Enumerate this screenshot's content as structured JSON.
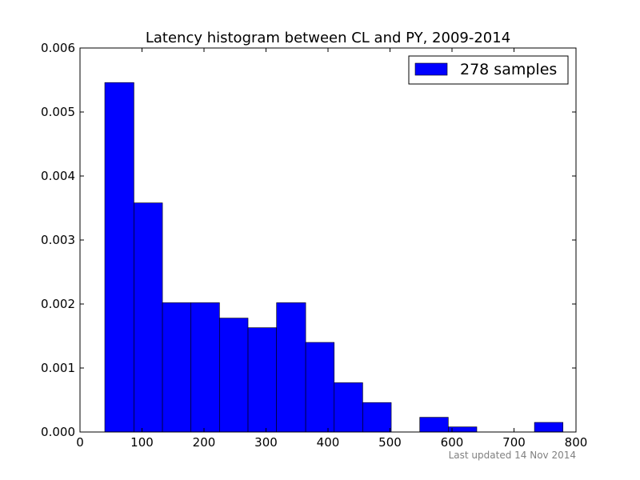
{
  "chart_data": {
    "type": "bar",
    "title": "Latency histogram between CL and PY, 2009-2014",
    "xlabel": "",
    "ylabel": "",
    "xlim": [
      0,
      800
    ],
    "ylim": [
      0,
      0.006
    ],
    "x_ticks": [
      "0",
      "100",
      "200",
      "300",
      "400",
      "500",
      "600",
      "700",
      "800"
    ],
    "y_ticks": [
      "0.000",
      "0.001",
      "0.002",
      "0.003",
      "0.004",
      "0.005",
      "0.006"
    ],
    "bar_color": "#0000ff",
    "grid": false,
    "legend_position": "top-right",
    "series": [
      {
        "name": "278 samples",
        "bins": [
          {
            "x0": 40,
            "x1": 87,
            "value": 0.00546
          },
          {
            "x0": 87,
            "x1": 133,
            "value": 0.00358
          },
          {
            "x0": 133,
            "x1": 179,
            "value": 0.00202
          },
          {
            "x0": 179,
            "x1": 225,
            "value": 0.00202
          },
          {
            "x0": 225,
            "x1": 271,
            "value": 0.00178
          },
          {
            "x0": 271,
            "x1": 317,
            "value": 0.00163
          },
          {
            "x0": 317,
            "x1": 364,
            "value": 0.00202
          },
          {
            "x0": 364,
            "x1": 410,
            "value": 0.0014
          },
          {
            "x0": 410,
            "x1": 456,
            "value": 0.00077
          },
          {
            "x0": 456,
            "x1": 502,
            "value": 0.00046
          },
          {
            "x0": 502,
            "x1": 548,
            "value": 0
          },
          {
            "x0": 548,
            "x1": 594,
            "value": 0.00023
          },
          {
            "x0": 594,
            "x1": 640,
            "value": 8e-05
          },
          {
            "x0": 640,
            "x1": 687,
            "value": 0
          },
          {
            "x0": 687,
            "x1": 733,
            "value": 0
          },
          {
            "x0": 733,
            "x1": 779,
            "value": 0.00015
          }
        ]
      }
    ]
  },
  "footer": "Last updated 14 Nov 2014"
}
